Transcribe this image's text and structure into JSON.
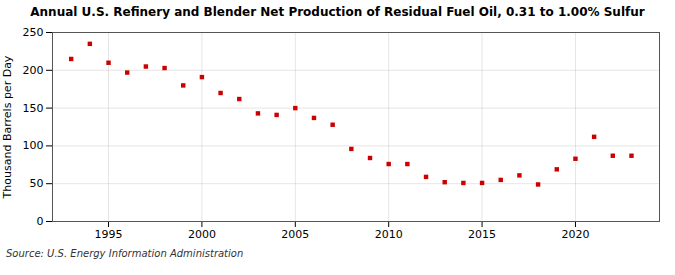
{
  "chart_data": {
    "type": "scatter",
    "title": "Annual U.S. Refinery and Blender Net Production of Residual Fuel Oil, 0.31 to 1.00% Sulfur",
    "y_label": "Thousand Barrels per Day",
    "annotations": [
      "Source: U.S. Energy Information Administration"
    ],
    "x": [
      1993,
      1994,
      1995,
      1996,
      1997,
      1998,
      1999,
      2000,
      2001,
      2002,
      2003,
      2004,
      2005,
      2006,
      2007,
      2008,
      2009,
      2010,
      2011,
      2012,
      2013,
      2014,
      2015,
      2016,
      2017,
      2018,
      2019,
      2020,
      2021,
      2022,
      2023
    ],
    "values": [
      215,
      235,
      210,
      197,
      205,
      203,
      180,
      191,
      170,
      162,
      143,
      141,
      150,
      137,
      128,
      96,
      84,
      76,
      76,
      59,
      52,
      51,
      51,
      55,
      61,
      49,
      69,
      83,
      112,
      87,
      87
    ],
    "color": "#cc0000",
    "marker": "square",
    "xlim": [
      1992,
      2024.5
    ],
    "ylim": [
      0,
      250
    ],
    "xticks": [
      1995,
      2000,
      2005,
      2010,
      2015,
      2020
    ],
    "yticks": [
      0,
      50,
      100,
      150,
      200,
      250
    ],
    "grid": true
  }
}
